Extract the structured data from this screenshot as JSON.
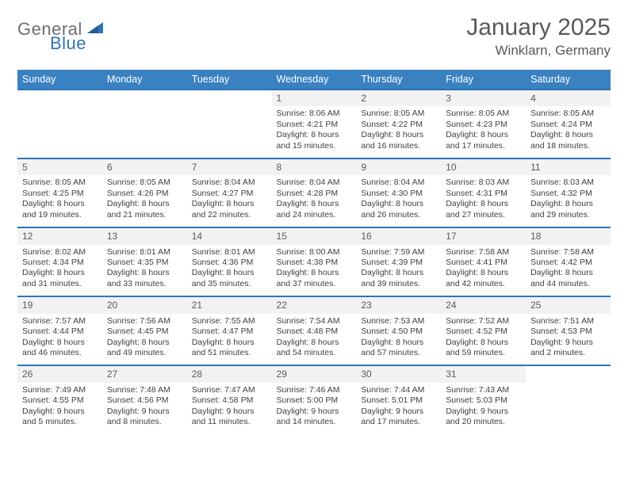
{
  "logo": {
    "text1": "General",
    "text2": "Blue",
    "color1": "#6d6e71",
    "color2": "#2e75b6"
  },
  "title": "January 2025",
  "location": "Winklarn, Germany",
  "header_bg": "#3a81c2",
  "rule_color": "#2e75b6",
  "daynum_bg": "#f2f2f2",
  "weekdays": [
    "Sunday",
    "Monday",
    "Tuesday",
    "Wednesday",
    "Thursday",
    "Friday",
    "Saturday"
  ],
  "weeks": [
    [
      null,
      null,
      null,
      {
        "n": "1",
        "sr": "Sunrise: 8:06 AM",
        "ss": "Sunset: 4:21 PM",
        "dl": "Daylight: 8 hours and 15 minutes."
      },
      {
        "n": "2",
        "sr": "Sunrise: 8:05 AM",
        "ss": "Sunset: 4:22 PM",
        "dl": "Daylight: 8 hours and 16 minutes."
      },
      {
        "n": "3",
        "sr": "Sunrise: 8:05 AM",
        "ss": "Sunset: 4:23 PM",
        "dl": "Daylight: 8 hours and 17 minutes."
      },
      {
        "n": "4",
        "sr": "Sunrise: 8:05 AM",
        "ss": "Sunset: 4:24 PM",
        "dl": "Daylight: 8 hours and 18 minutes."
      }
    ],
    [
      {
        "n": "5",
        "sr": "Sunrise: 8:05 AM",
        "ss": "Sunset: 4:25 PM",
        "dl": "Daylight: 8 hours and 19 minutes."
      },
      {
        "n": "6",
        "sr": "Sunrise: 8:05 AM",
        "ss": "Sunset: 4:26 PM",
        "dl": "Daylight: 8 hours and 21 minutes."
      },
      {
        "n": "7",
        "sr": "Sunrise: 8:04 AM",
        "ss": "Sunset: 4:27 PM",
        "dl": "Daylight: 8 hours and 22 minutes."
      },
      {
        "n": "8",
        "sr": "Sunrise: 8:04 AM",
        "ss": "Sunset: 4:28 PM",
        "dl": "Daylight: 8 hours and 24 minutes."
      },
      {
        "n": "9",
        "sr": "Sunrise: 8:04 AM",
        "ss": "Sunset: 4:30 PM",
        "dl": "Daylight: 8 hours and 26 minutes."
      },
      {
        "n": "10",
        "sr": "Sunrise: 8:03 AM",
        "ss": "Sunset: 4:31 PM",
        "dl": "Daylight: 8 hours and 27 minutes."
      },
      {
        "n": "11",
        "sr": "Sunrise: 8:03 AM",
        "ss": "Sunset: 4:32 PM",
        "dl": "Daylight: 8 hours and 29 minutes."
      }
    ],
    [
      {
        "n": "12",
        "sr": "Sunrise: 8:02 AM",
        "ss": "Sunset: 4:34 PM",
        "dl": "Daylight: 8 hours and 31 minutes."
      },
      {
        "n": "13",
        "sr": "Sunrise: 8:01 AM",
        "ss": "Sunset: 4:35 PM",
        "dl": "Daylight: 8 hours and 33 minutes."
      },
      {
        "n": "14",
        "sr": "Sunrise: 8:01 AM",
        "ss": "Sunset: 4:36 PM",
        "dl": "Daylight: 8 hours and 35 minutes."
      },
      {
        "n": "15",
        "sr": "Sunrise: 8:00 AM",
        "ss": "Sunset: 4:38 PM",
        "dl": "Daylight: 8 hours and 37 minutes."
      },
      {
        "n": "16",
        "sr": "Sunrise: 7:59 AM",
        "ss": "Sunset: 4:39 PM",
        "dl": "Daylight: 8 hours and 39 minutes."
      },
      {
        "n": "17",
        "sr": "Sunrise: 7:58 AM",
        "ss": "Sunset: 4:41 PM",
        "dl": "Daylight: 8 hours and 42 minutes."
      },
      {
        "n": "18",
        "sr": "Sunrise: 7:58 AM",
        "ss": "Sunset: 4:42 PM",
        "dl": "Daylight: 8 hours and 44 minutes."
      }
    ],
    [
      {
        "n": "19",
        "sr": "Sunrise: 7:57 AM",
        "ss": "Sunset: 4:44 PM",
        "dl": "Daylight: 8 hours and 46 minutes."
      },
      {
        "n": "20",
        "sr": "Sunrise: 7:56 AM",
        "ss": "Sunset: 4:45 PM",
        "dl": "Daylight: 8 hours and 49 minutes."
      },
      {
        "n": "21",
        "sr": "Sunrise: 7:55 AM",
        "ss": "Sunset: 4:47 PM",
        "dl": "Daylight: 8 hours and 51 minutes."
      },
      {
        "n": "22",
        "sr": "Sunrise: 7:54 AM",
        "ss": "Sunset: 4:48 PM",
        "dl": "Daylight: 8 hours and 54 minutes."
      },
      {
        "n": "23",
        "sr": "Sunrise: 7:53 AM",
        "ss": "Sunset: 4:50 PM",
        "dl": "Daylight: 8 hours and 57 minutes."
      },
      {
        "n": "24",
        "sr": "Sunrise: 7:52 AM",
        "ss": "Sunset: 4:52 PM",
        "dl": "Daylight: 8 hours and 59 minutes."
      },
      {
        "n": "25",
        "sr": "Sunrise: 7:51 AM",
        "ss": "Sunset: 4:53 PM",
        "dl": "Daylight: 9 hours and 2 minutes."
      }
    ],
    [
      {
        "n": "26",
        "sr": "Sunrise: 7:49 AM",
        "ss": "Sunset: 4:55 PM",
        "dl": "Daylight: 9 hours and 5 minutes."
      },
      {
        "n": "27",
        "sr": "Sunrise: 7:48 AM",
        "ss": "Sunset: 4:56 PM",
        "dl": "Daylight: 9 hours and 8 minutes."
      },
      {
        "n": "28",
        "sr": "Sunrise: 7:47 AM",
        "ss": "Sunset: 4:58 PM",
        "dl": "Daylight: 9 hours and 11 minutes."
      },
      {
        "n": "29",
        "sr": "Sunrise: 7:46 AM",
        "ss": "Sunset: 5:00 PM",
        "dl": "Daylight: 9 hours and 14 minutes."
      },
      {
        "n": "30",
        "sr": "Sunrise: 7:44 AM",
        "ss": "Sunset: 5:01 PM",
        "dl": "Daylight: 9 hours and 17 minutes."
      },
      {
        "n": "31",
        "sr": "Sunrise: 7:43 AM",
        "ss": "Sunset: 5:03 PM",
        "dl": "Daylight: 9 hours and 20 minutes."
      },
      null
    ]
  ]
}
